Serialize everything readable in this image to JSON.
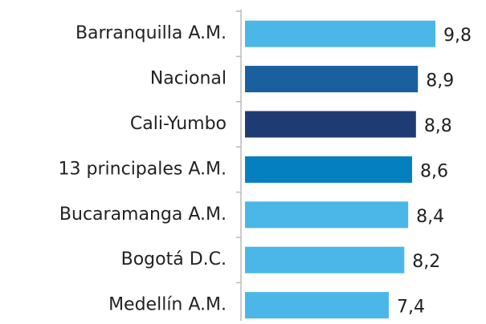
{
  "chart_data": {
    "type": "barh",
    "categories": [
      "Barranquilla A.M.",
      "Nacional",
      "Cali-Yumbo",
      "13 principales A.M.",
      "Bucaramanga A.M.",
      "Bogotá D.C.",
      "Medellín A.M."
    ],
    "values": [
      9.8,
      8.9,
      8.8,
      8.6,
      8.4,
      8.2,
      7.4
    ],
    "value_labels": [
      "9,8",
      "8,9",
      "8,8",
      "8,6",
      "8,4",
      "8,2",
      "7,4"
    ],
    "colors": [
      "#4ab7e8",
      "#1a5f9e",
      "#1f3b73",
      "#0580bf",
      "#4ab7e8",
      "#4ab7e8",
      "#4ab7e8"
    ]
  }
}
